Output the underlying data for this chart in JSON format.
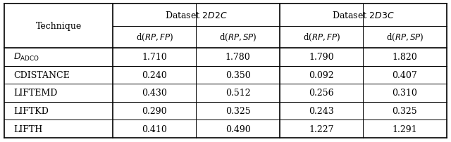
{
  "title": "",
  "col_headers_top": [
    "",
    "Dataset $\\mathit{2D2C}$",
    "",
    "Dataset $\\mathit{2D3C}$",
    ""
  ],
  "col_headers_sub": [
    "Technique",
    "d($\\mathit{RP,FP}$)",
    "d($\\mathit{RP,SP}$)",
    "d($\\mathit{RP,FP}$)",
    "d($\\mathit{RP,SP}$)"
  ],
  "rows": [
    [
      "$D_{\\mathrm{ADCO}}$",
      "1.710",
      "1.780",
      "1.790",
      "1.820"
    ],
    [
      "C\\textsc{distance}",
      "0.240",
      "0.350",
      "0.092",
      "0.407"
    ],
    [
      "L\\textsc{ift}EMD",
      "0.430",
      "0.512",
      "0.256",
      "0.310"
    ],
    [
      "L\\textsc{ift}KD",
      "0.290",
      "0.325",
      "0.243",
      "0.325"
    ],
    [
      "L\\textsc{ift}H",
      "0.410",
      "0.490",
      "1.227",
      "1.291"
    ]
  ],
  "row_labels": [
    "$D_{\\mathrm{ADCO}}$",
    "C\\textsc{distance}",
    "L\\textsc{ift}EMD",
    "L\\textsc{ift}KD",
    "L\\textsc{ift}H"
  ],
  "background_color": "#ffffff",
  "text_color": "#000000"
}
